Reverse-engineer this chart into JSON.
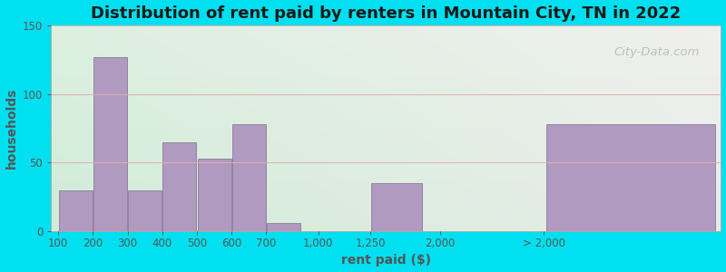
{
  "title": "Distribution of rent paid by renters in Mountain City, TN in 2022",
  "xlabel": "rent paid ($)",
  "ylabel": "households",
  "bar_labels": [
    "100",
    "200",
    "300",
    "400",
    "500",
    "600",
    "700",
    "1,000",
    "1,250",
    "2,000",
    "> 2,000"
  ],
  "bar_values": [
    30,
    127,
    30,
    65,
    53,
    78,
    6,
    0,
    35,
    0,
    78
  ],
  "bar_color": "#b09ac0",
  "bar_edge_color": "#8a7a9a",
  "ylim": [
    0,
    150
  ],
  "yticks": [
    0,
    50,
    100,
    150
  ],
  "background_outer": "#00e0f0",
  "background_plot_topleft": "#ddf0e0",
  "background_plot_topright": "#f0f0ee",
  "background_plot_bottomleft": "#c8e8d8",
  "background_plot_bottomright": "#e8ece8",
  "grid_color": "#e0b0b0",
  "title_color": "#1a1a1a",
  "axis_color": "#555555",
  "title_fontsize": 13,
  "label_fontsize": 10,
  "tick_fontsize": 8.5,
  "watermark_text": "City-Data.com",
  "watermark_color": "#b0b8b0",
  "x_positions": [
    0,
    1,
    2,
    3,
    4,
    5,
    6,
    7.5,
    9,
    11,
    14
  ],
  "bar_widths": [
    1,
    1,
    1,
    1,
    1,
    1,
    1,
    1.5,
    1.5,
    1,
    5
  ]
}
